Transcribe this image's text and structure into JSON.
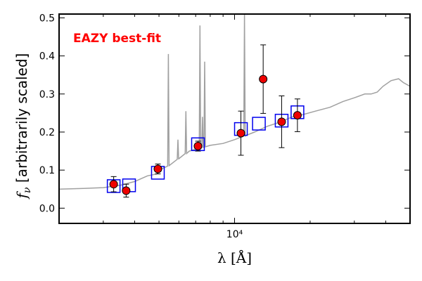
{
  "chart_data": {
    "type": "scatter",
    "x_scale": "log",
    "xlim": [
      2000,
      50000
    ],
    "ylim": [
      -0.04,
      0.51
    ],
    "yticks": [
      0.0,
      0.1,
      0.2,
      0.3,
      0.4,
      0.5
    ],
    "ytick_labels": [
      "0.0",
      "0.1",
      "0.2",
      "0.3",
      "0.4",
      "0.5"
    ],
    "xtick_major": [
      10000
    ],
    "xtick_major_labels": [
      "10⁴"
    ],
    "xtick_minor": [
      3000,
      4000,
      5000,
      6000,
      7000,
      8000,
      9000,
      20000,
      30000,
      40000
    ],
    "xlabel": "λ [Å]",
    "ylabel_symbol": "f",
    "ylabel_sub": "ν",
    "ylabel_text": " [arbitrarily scaled]",
    "annotation": "EAZY best-fit",
    "colors": {
      "model": "#a0a0a0",
      "template_box": "#0000ee",
      "observed_point": "#ee0000",
      "errorbar": "#000000"
    },
    "model_spectrum": {
      "continuum": [
        [
          2000,
          0.05
        ],
        [
          2500,
          0.052
        ],
        [
          3000,
          0.054
        ],
        [
          3500,
          0.06
        ],
        [
          4000,
          0.07
        ],
        [
          4500,
          0.085
        ],
        [
          4900,
          0.09
        ],
        [
          5000,
          0.1
        ],
        [
          5400,
          0.11
        ],
        [
          6000,
          0.13
        ],
        [
          6600,
          0.15
        ],
        [
          7000,
          0.155
        ],
        [
          8000,
          0.165
        ],
        [
          9000,
          0.17
        ],
        [
          10000,
          0.18
        ],
        [
          11000,
          0.19
        ],
        [
          12000,
          0.2
        ],
        [
          13500,
          0.215
        ],
        [
          15000,
          0.225
        ],
        [
          17000,
          0.24
        ],
        [
          18500,
          0.245
        ],
        [
          21000,
          0.255
        ],
        [
          24000,
          0.265
        ],
        [
          27000,
          0.28
        ],
        [
          30000,
          0.29
        ],
        [
          33000,
          0.3
        ],
        [
          35000,
          0.3
        ],
        [
          37000,
          0.305
        ],
        [
          39000,
          0.32
        ],
        [
          42000,
          0.335
        ],
        [
          45000,
          0.34
        ],
        [
          47000,
          0.33
        ],
        [
          50000,
          0.32
        ]
      ],
      "emission_lines": [
        {
          "x": 5450,
          "peak": 0.405
        },
        {
          "x": 5950,
          "peak": 0.18
        },
        {
          "x": 6400,
          "peak": 0.255
        },
        {
          "x": 7280,
          "peak": 0.48
        },
        {
          "x": 7450,
          "peak": 0.24
        },
        {
          "x": 7600,
          "peak": 0.385
        },
        {
          "x": 10950,
          "peak": 0.51
        }
      ]
    },
    "template_fluxes": [
      {
        "x": 3300,
        "y": 0.058
      },
      {
        "x": 3800,
        "y": 0.06
      },
      {
        "x": 4950,
        "y": 0.093
      },
      {
        "x": 7150,
        "y": 0.168
      },
      {
        "x": 10600,
        "y": 0.208
      },
      {
        "x": 12500,
        "y": 0.222
      },
      {
        "x": 15400,
        "y": 0.23
      },
      {
        "x": 17800,
        "y": 0.252
      }
    ],
    "observed": [
      {
        "x": 3300,
        "y": 0.063,
        "err_lo": 0.02,
        "err_hi": 0.02
      },
      {
        "x": 3700,
        "y": 0.046,
        "err_lo": 0.017,
        "err_hi": 0.017
      },
      {
        "x": 4950,
        "y": 0.103,
        "err_lo": 0.013,
        "err_hi": 0.013
      },
      {
        "x": 7150,
        "y": 0.163,
        "err_lo": 0.013,
        "err_hi": 0.013
      },
      {
        "x": 10600,
        "y": 0.197,
        "err_lo": 0.058,
        "err_hi": 0.058
      },
      {
        "x": 13000,
        "y": 0.339,
        "err_lo": 0.09,
        "err_hi": 0.09
      },
      {
        "x": 15400,
        "y": 0.227,
        "err_lo": 0.068,
        "err_hi": 0.068
      },
      {
        "x": 17800,
        "y": 0.244,
        "err_lo": 0.043,
        "err_hi": 0.043
      }
    ]
  }
}
